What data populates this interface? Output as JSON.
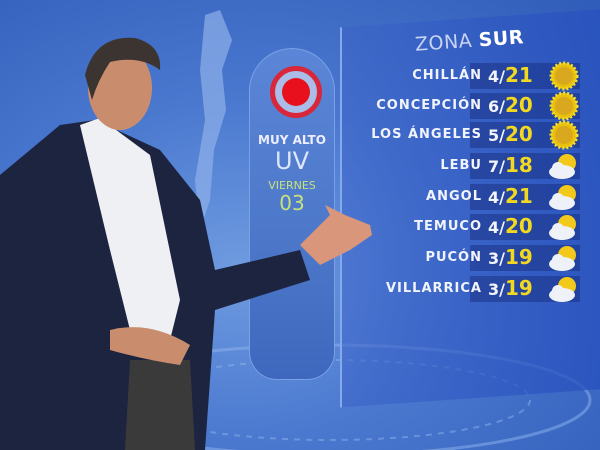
{
  "uv_card": {
    "icon": "uv-target-icon",
    "level": "MUY ALTO",
    "index": "UV",
    "day": "VIERNES",
    "date": "03",
    "level_color": "#e8101c"
  },
  "zone": {
    "prefix": "ZONA",
    "name": "SUR"
  },
  "forecast": [
    {
      "city": "CHILLÁN",
      "min": "4/",
      "max": "21",
      "icon": "sun-icon"
    },
    {
      "city": "CONCEPCIÓN",
      "min": "6/",
      "max": "20",
      "icon": "sun-icon"
    },
    {
      "city": "LOS ÁNGELES",
      "min": "5/",
      "max": "20",
      "icon": "sun-icon"
    },
    {
      "city": "LEBU",
      "min": "7/",
      "max": "18",
      "icon": "partly-cloudy-icon"
    },
    {
      "city": "ANGOL",
      "min": "4/",
      "max": "21",
      "icon": "partly-cloudy-icon"
    },
    {
      "city": "TEMUCO",
      "min": "4/",
      "max": "20",
      "icon": "partly-cloudy-icon"
    },
    {
      "city": "PUCÓN",
      "min": "3/",
      "max": "19",
      "icon": "partly-cloudy-icon"
    },
    {
      "city": "VILLARRICA",
      "min": "3/",
      "max": "19",
      "icon": "partly-cloudy-icon"
    }
  ],
  "colors": {
    "max_temp": "#f2d820",
    "background": "#4a78cf"
  }
}
